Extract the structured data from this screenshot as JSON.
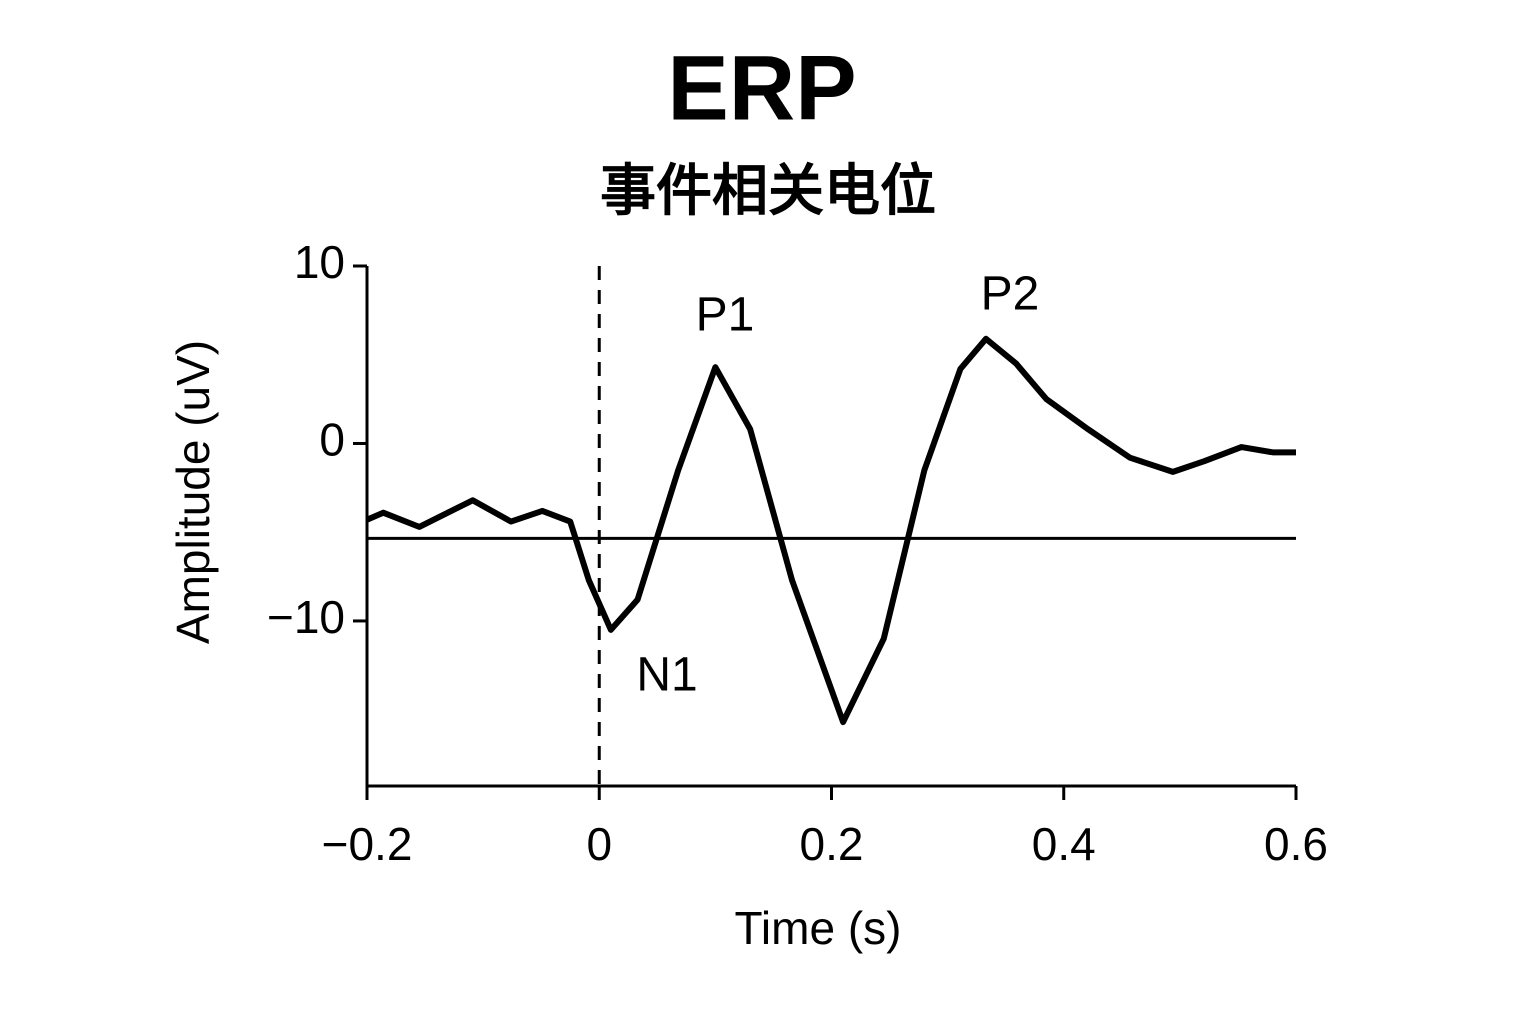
{
  "chart_data": {
    "type": "line",
    "title": "ERP",
    "subtitle": "事件相关电位",
    "x_label": "Time (s)",
    "y_label": "Amplitude (uV)",
    "x": [
      -0.2,
      -0.186,
      -0.155,
      -0.109,
      -0.076,
      -0.049,
      -0.025,
      -0.009,
      0.01,
      0.033,
      0.068,
      0.1,
      0.13,
      0.166,
      0.21,
      0.245,
      0.28,
      0.311,
      0.333,
      0.359,
      0.385,
      0.421,
      0.457,
      0.494,
      0.521,
      0.553,
      0.58,
      0.6
    ],
    "series": [
      {
        "color": "#000000",
        "values": [
          -4.3,
          -3.9,
          -4.7,
          -3.2,
          -4.4,
          -3.8,
          -4.4,
          -7.7,
          -10.5,
          -8.8,
          -1.5,
          4.3,
          0.8,
          -7.7,
          -15.7,
          -11.0,
          -1.5,
          4.2,
          5.9,
          4.5,
          2.5,
          0.8,
          -0.8,
          -1.6,
          -1.0,
          -0.2,
          -0.5,
          -0.5
        ]
      }
    ],
    "xlim": [
      -0.2,
      0.6
    ],
    "ylim": [
      -19.3,
      10
    ],
    "xticks": [
      {
        "value": -0.2,
        "label": "−0.2"
      },
      0,
      0.2,
      0.4,
      0.6
    ],
    "yticks": [
      10,
      0,
      {
        "value": -10,
        "label": "−10"
      }
    ],
    "reference_line": -5.35,
    "stimulus_line": 0,
    "annotations": [
      "P1",
      "P2",
      "N1"
    ]
  }
}
